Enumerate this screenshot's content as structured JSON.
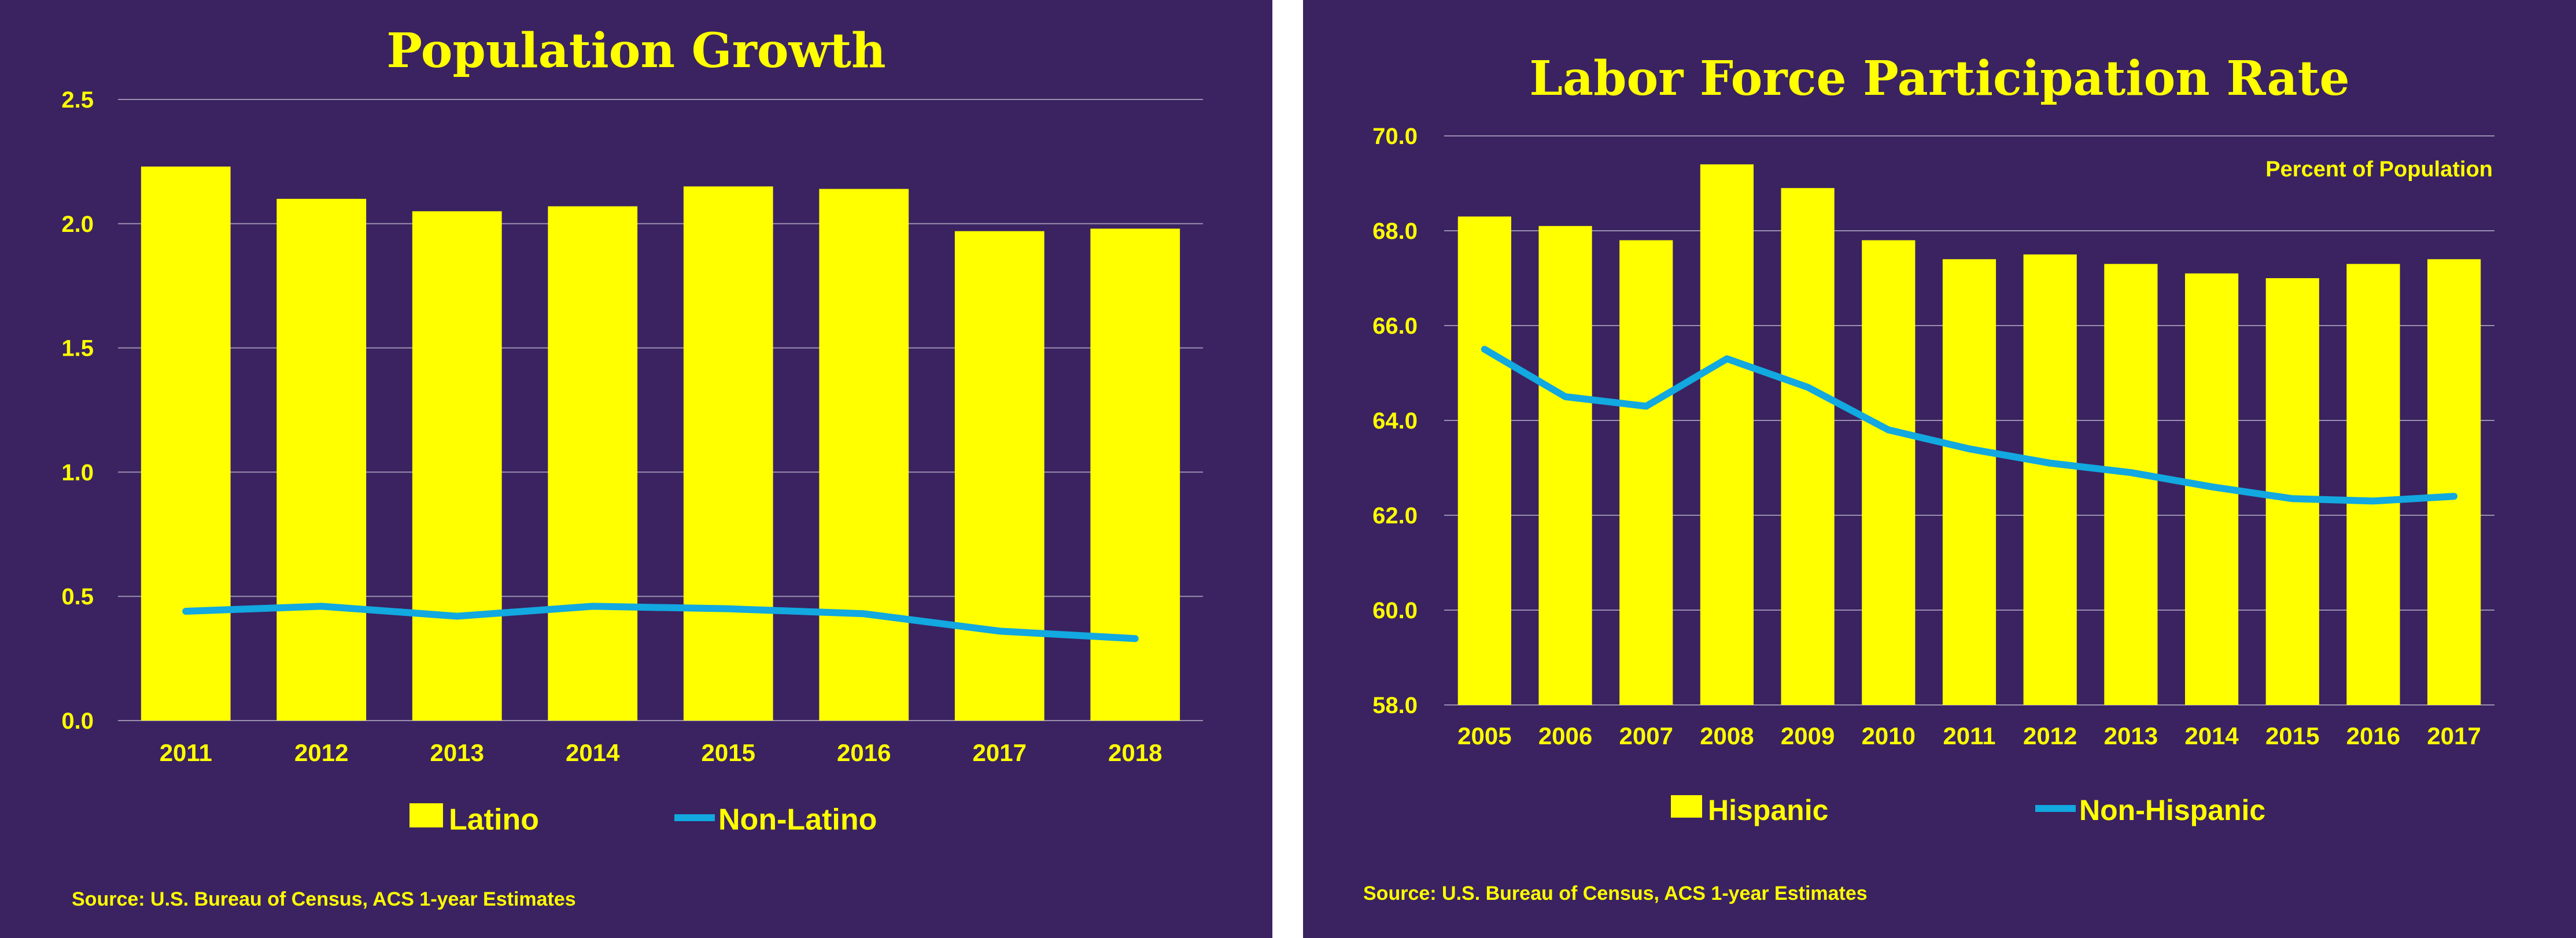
{
  "chart_data": [
    {
      "type": "bar",
      "title": "Population Growth",
      "categories": [
        "2011",
        "2012",
        "2013",
        "2014",
        "2015",
        "2016",
        "2017",
        "2018"
      ],
      "series": [
        {
          "name": "Latino",
          "type": "bar",
          "values": [
            2.23,
            2.1,
            2.05,
            2.07,
            2.15,
            2.14,
            1.97,
            1.98
          ]
        },
        {
          "name": "Non-Latino",
          "type": "line",
          "values": [
            0.44,
            0.46,
            0.42,
            0.46,
            0.45,
            0.43,
            0.36,
            0.33
          ]
        }
      ],
      "ylim": [
        0,
        2.5
      ],
      "yticks": [
        "0.0",
        "0.5",
        "1.0",
        "1.5",
        "2.0",
        "2.5"
      ],
      "grid": true,
      "legend": "bottom",
      "source": "Source:  U.S. Bureau of Census, ACS 1-year Estimates",
      "colors": {
        "background": "#3a2360",
        "bar": "#ffff00",
        "line": "#12a8e0",
        "text": "#ffff00",
        "grid": "#9a8fb0"
      }
    },
    {
      "type": "bar",
      "title": "Labor Force Participation Rate",
      "unit_note": "Percent of Population",
      "categories": [
        "2005",
        "2006",
        "2007",
        "2008",
        "2009",
        "2010",
        "2011",
        "2012",
        "2013",
        "2014",
        "2015",
        "2016",
        "2017"
      ],
      "series": [
        {
          "name": "Hispanic",
          "type": "bar",
          "values": [
            68.3,
            68.1,
            67.8,
            69.4,
            68.9,
            67.8,
            67.4,
            67.5,
            67.3,
            67.1,
            67.0,
            67.3,
            67.4
          ]
        },
        {
          "name": "Non-Hispanic",
          "type": "line",
          "values": [
            65.5,
            64.5,
            64.3,
            65.3,
            64.7,
            63.8,
            63.4,
            63.1,
            62.9,
            62.6,
            62.35,
            62.3,
            62.4
          ]
        }
      ],
      "ylim": [
        58,
        70
      ],
      "yticks": [
        "58.0",
        "60.0",
        "62.0",
        "64.0",
        "66.0",
        "68.0",
        "70.0"
      ],
      "grid": true,
      "legend": "bottom",
      "source": "Source: U.S. Bureau of Census, ACS 1-year Estimates",
      "colors": {
        "background": "#3a2360",
        "bar": "#ffff00",
        "line": "#12a8e0",
        "text": "#ffff00",
        "grid": "#9a8fb0"
      }
    }
  ]
}
